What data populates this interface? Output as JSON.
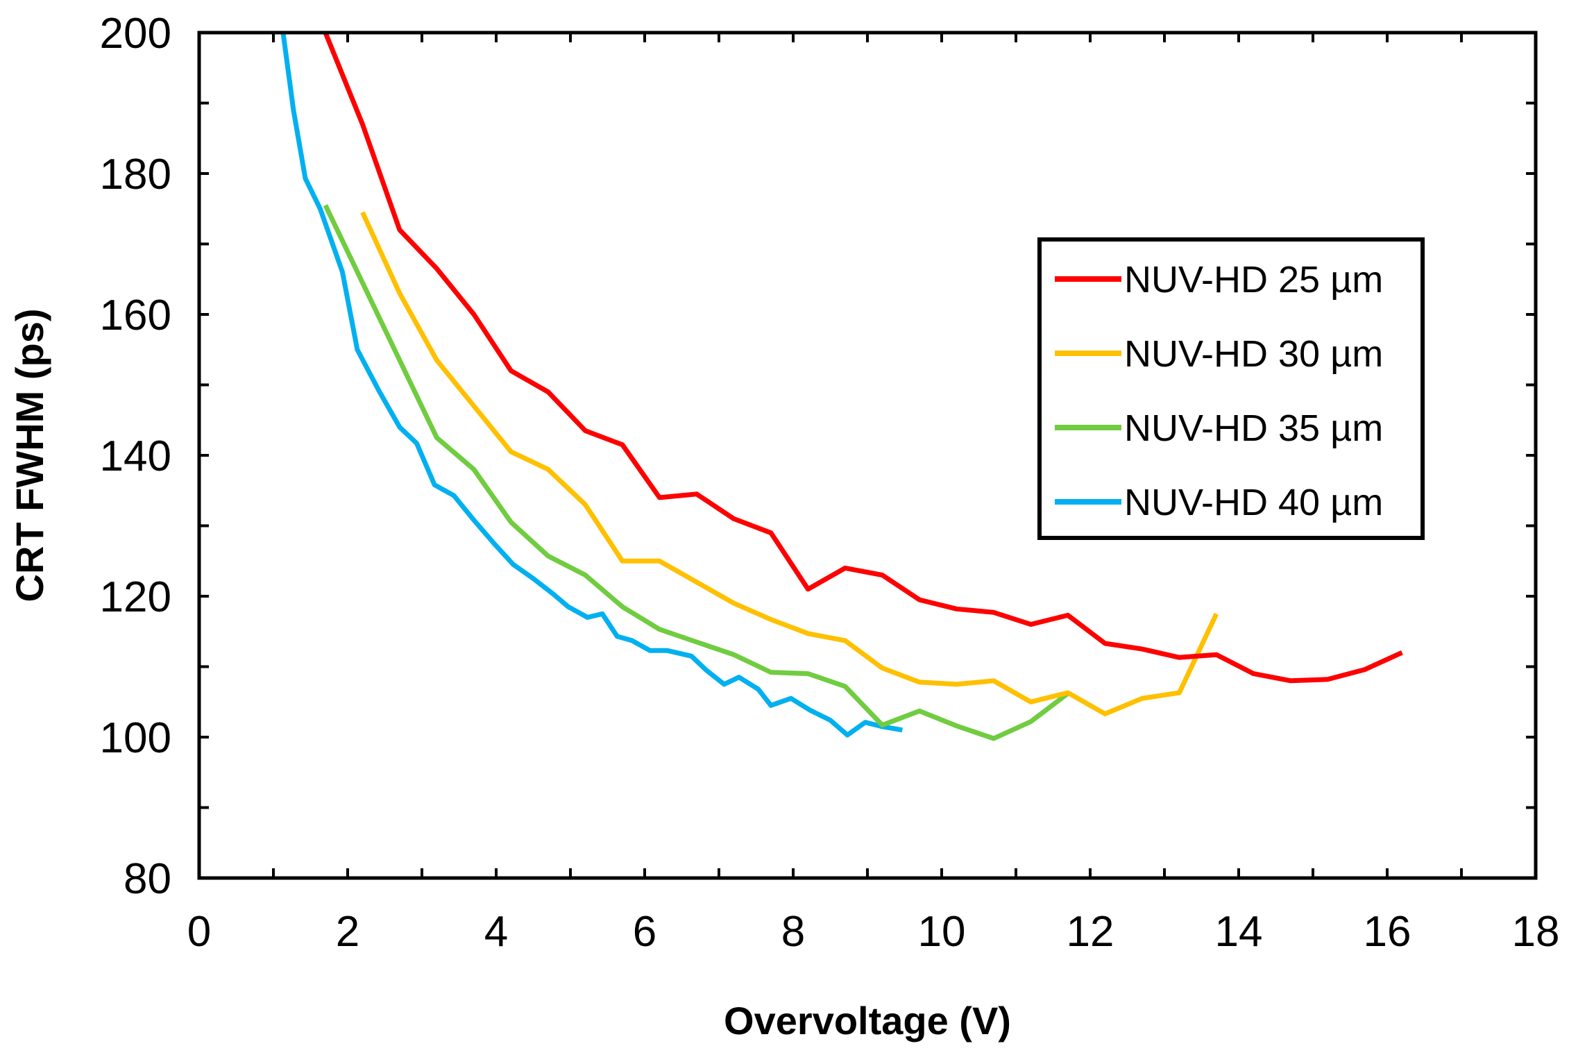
{
  "chart_data": {
    "type": "line",
    "title": "",
    "xlabel": "Overvoltage (V)",
    "ylabel": "CRT FWHM (ps)",
    "xlim": [
      0,
      18
    ],
    "ylim": [
      80,
      200
    ],
    "xticks": [
      0,
      2,
      4,
      6,
      8,
      10,
      12,
      14,
      16,
      18
    ],
    "yticks": [
      80,
      100,
      120,
      140,
      160,
      180,
      200
    ],
    "x_minor_step": 1,
    "y_minor_step": 10,
    "grid": false,
    "legend_position": "right",
    "series": [
      {
        "name": "NUV-HD 25 µm",
        "color": "#FF0000",
        "x": [
          1.7,
          2.2,
          2.7,
          3.2,
          3.7,
          4.2,
          4.7,
          5.2,
          5.7,
          6.2,
          6.7,
          7.2,
          7.7,
          8.2,
          8.7,
          9.2,
          9.7,
          10.2,
          10.7,
          11.2,
          11.7,
          12.2,
          12.7,
          13.2,
          13.7,
          14.2,
          14.7,
          15.2,
          15.7,
          16.2
        ],
        "y": [
          200,
          187,
          172,
          166.5,
          160,
          152,
          149,
          143.5,
          141.5,
          134,
          134.5,
          131,
          129,
          121,
          124,
          123,
          119.5,
          118.2,
          117.7,
          116,
          117.3,
          113.3,
          112.5,
          111.3,
          111.7,
          109,
          108,
          108.2,
          109.6,
          112
        ]
      },
      {
        "name": "NUV-HD 30 µm",
        "color": "#FFC000",
        "x": [
          2.2,
          2.7,
          3.2,
          3.7,
          4.2,
          4.7,
          5.2,
          5.7,
          6.2,
          6.7,
          7.2,
          7.7,
          8.2,
          8.7,
          9.2,
          9.7,
          10.2,
          10.7,
          11.2,
          11.7,
          12.2,
          12.7,
          13.2,
          13.7
        ],
        "y": [
          174.5,
          163,
          153.5,
          147,
          140.5,
          138,
          133,
          125,
          125,
          122,
          119,
          116.7,
          114.7,
          113.7,
          109.8,
          107.8,
          107.5,
          108,
          105,
          106.3,
          103.3,
          105.5,
          106.3,
          117.5
        ]
      },
      {
        "name": "NUV-HD 35 µm",
        "color": "#70CC40",
        "x": [
          1.7,
          2.2,
          2.7,
          3.2,
          3.7,
          4.2,
          4.7,
          5.2,
          5.7,
          6.2,
          6.7,
          7.2,
          7.7,
          8.2,
          8.7,
          9.2,
          9.7,
          10.2,
          10.7,
          11.2,
          11.7
        ],
        "y": [
          175.5,
          164.5,
          153.5,
          142.5,
          138,
          130.5,
          125.7,
          123,
          118.5,
          115.3,
          113.5,
          111.7,
          109.2,
          109,
          107.2,
          101.7,
          103.7,
          101.6,
          99.8,
          102.2,
          106.2
        ]
      },
      {
        "name": "NUV-HD 40 µm",
        "color": "#00B0F0",
        "x": [
          1.13,
          1.27,
          1.43,
          1.63,
          1.93,
          2.13,
          2.43,
          2.7,
          2.93,
          3.17,
          3.43,
          3.7,
          3.97,
          4.23,
          4.5,
          4.77,
          4.97,
          5.23,
          5.43,
          5.63,
          5.83,
          6.07,
          6.3,
          6.63,
          6.83,
          7.07,
          7.27,
          7.53,
          7.7,
          7.97,
          8.23,
          8.5,
          8.73,
          8.97,
          9.2,
          9.47
        ],
        "y": [
          200,
          189,
          179.3,
          175,
          166,
          155,
          149,
          144,
          141.7,
          135.8,
          134.3,
          130.8,
          127.5,
          124.5,
          122.5,
          120.3,
          118.5,
          117,
          117.5,
          114.3,
          113.7,
          112.3,
          112.3,
          111.5,
          109.5,
          107.5,
          108.5,
          106.8,
          104.5,
          105.5,
          103.8,
          102.4,
          100.3,
          102.1,
          101.5,
          101
        ]
      }
    ]
  }
}
